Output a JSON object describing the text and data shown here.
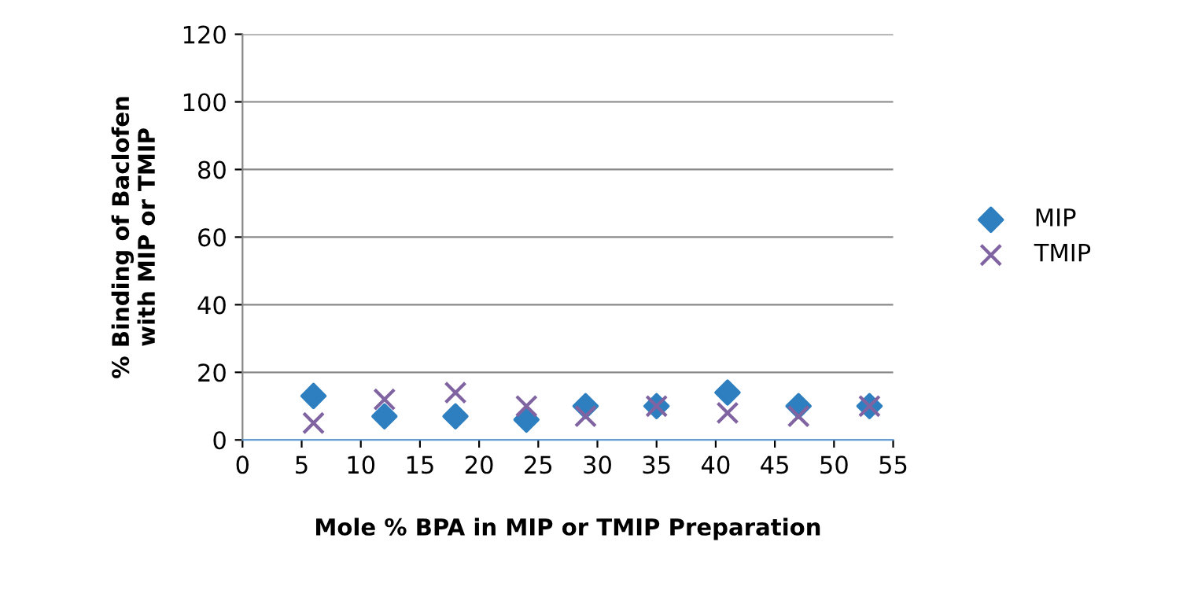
{
  "chart_data": {
    "type": "scatter",
    "xlabel": "Mole % BPA in MIP or TMIP Preparation",
    "ylabel": "% Binding of Baclofen\nwith MIP or TMIP",
    "series": [
      {
        "name": "MIP",
        "color": "#2e7fc0",
        "marker": "diamond",
        "x": [
          6,
          12,
          18,
          24,
          29,
          35,
          41,
          47,
          53
        ],
        "values": [
          13,
          7,
          7,
          6,
          10,
          10,
          14,
          10,
          10
        ]
      },
      {
        "name": "TMIP",
        "color": "#8064a2",
        "marker": "cross",
        "x": [
          6,
          12,
          18,
          24,
          29,
          35,
          41,
          47,
          53
        ],
        "values": [
          5,
          12,
          14,
          10,
          7,
          10,
          8,
          7,
          10
        ]
      }
    ],
    "xlim": [
      0,
      55
    ],
    "xticks": [
      0,
      5,
      10,
      15,
      20,
      25,
      30,
      35,
      40,
      45,
      50,
      55
    ],
    "ylim": [
      0,
      120
    ],
    "yticks": [
      0,
      20,
      40,
      60,
      80,
      100,
      120
    ],
    "grid": "y",
    "legend": "right"
  }
}
